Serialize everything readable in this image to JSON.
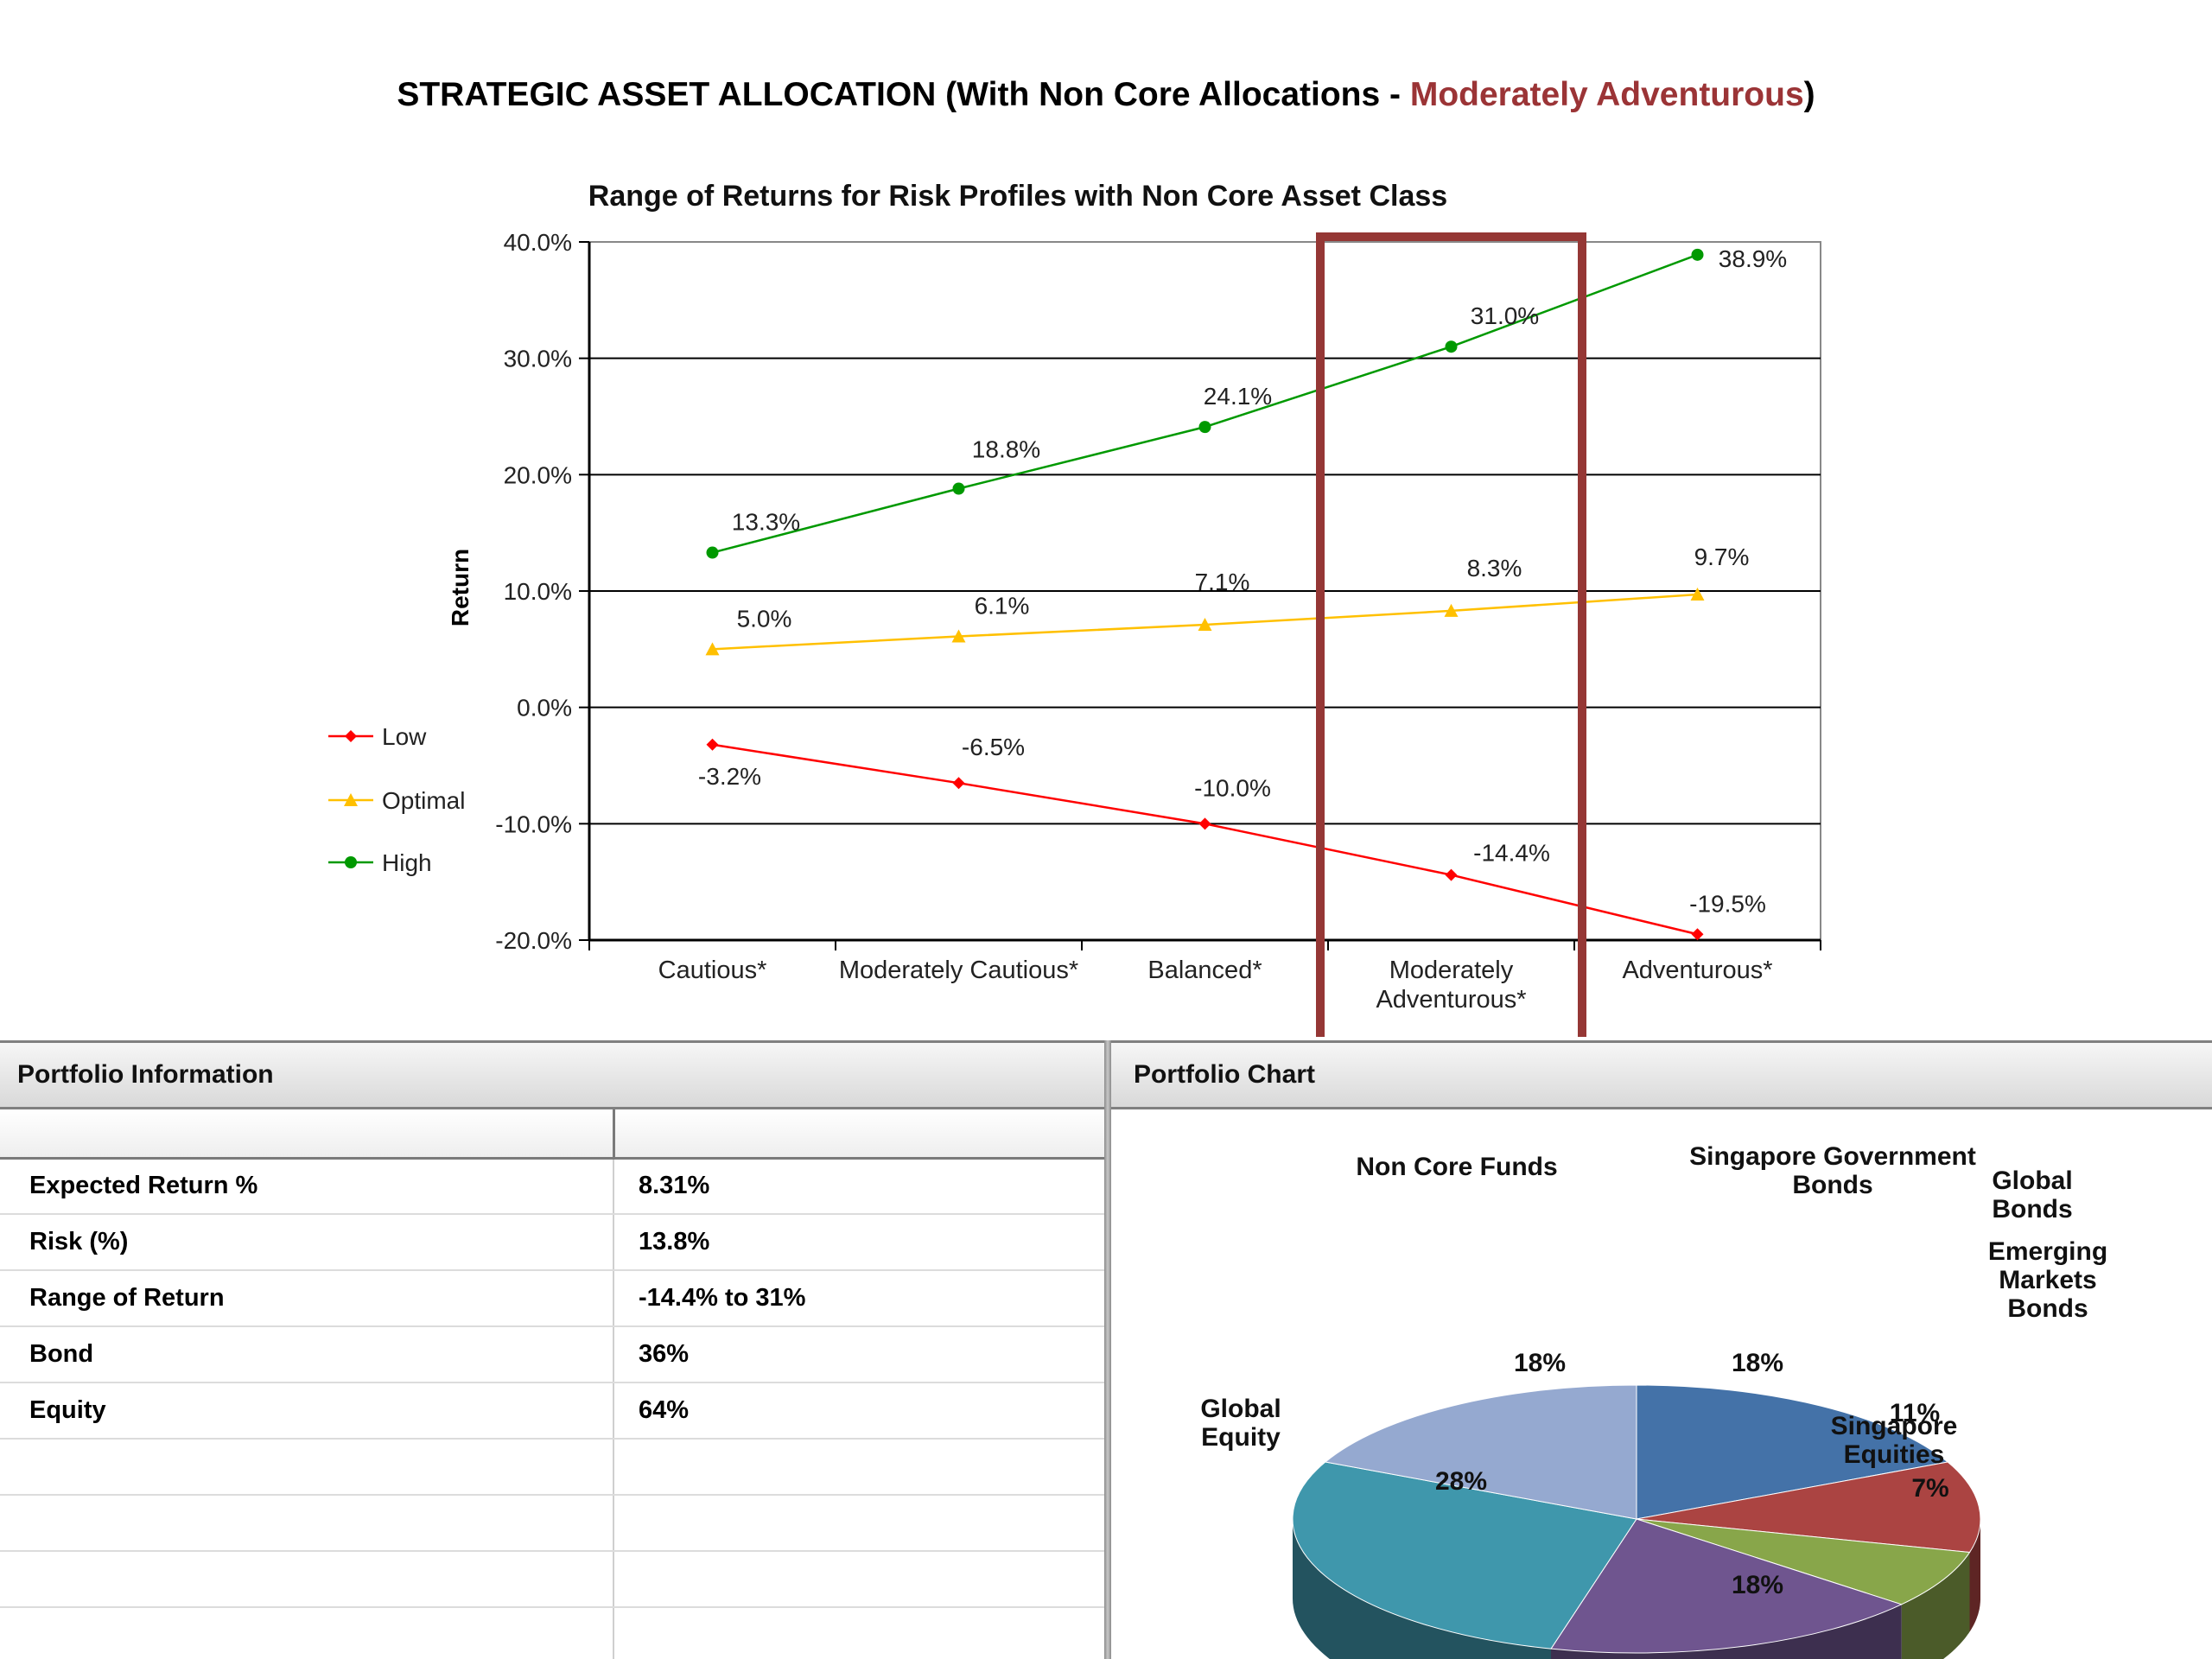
{
  "title": {
    "prefix": "STRATEGIC ASSET ALLOCATION (With Non Core Allocations - ",
    "highlight": "Moderately Adventurous",
    "suffix": ")",
    "highlight_color": "#9b3436"
  },
  "chart_data": [
    {
      "type": "line",
      "title": "Range of Returns for Risk Profiles with Non Core Asset Class",
      "xlabel": "",
      "ylabel": "Return",
      "categories": [
        "Cautious*",
        "Moderately Cautious*",
        "Balanced*",
        "Moderately Adventurous*",
        "Adventurous*"
      ],
      "category_lines": [
        [
          "Cautious*"
        ],
        [
          "Moderately Cautious*"
        ],
        [
          "Balanced*"
        ],
        [
          "Moderately",
          "Adventurous*"
        ],
        [
          "Adventurous*"
        ]
      ],
      "ylim": [
        -20,
        40
      ],
      "yticks": [
        -20,
        -10,
        0,
        10,
        20,
        30,
        40
      ],
      "ytick_labels": [
        "-20.0%",
        "-10.0%",
        "0.0%",
        "10.0%",
        "20.0%",
        "30.0%",
        "40.0%"
      ],
      "grid": true,
      "legend": "left",
      "highlighted_category": "Moderately Adventurous*",
      "highlight_color": "#953735",
      "series": [
        {
          "name": "Low",
          "color": "#ff0000",
          "marker": "diamond",
          "values": [
            -3.2,
            -6.5,
            -10.0,
            -14.4,
            -19.5
          ],
          "labels": [
            "-3.2%",
            "-6.5%",
            "-10.0%",
            "-14.4%",
            "-19.5%"
          ]
        },
        {
          "name": "Optimal",
          "color": "#ffc000",
          "marker": "triangle",
          "values": [
            5.0,
            6.1,
            7.1,
            8.3,
            9.7
          ],
          "labels": [
            "5.0%",
            "6.1%",
            "7.1%",
            "8.3%",
            "9.7%"
          ]
        },
        {
          "name": "High",
          "color": "#009900",
          "marker": "circle",
          "values": [
            13.3,
            18.8,
            24.1,
            31.0,
            38.9
          ],
          "labels": [
            "13.3%",
            "18.8%",
            "24.1%",
            "31.0%",
            "38.9%"
          ]
        }
      ]
    },
    {
      "type": "pie",
      "slices": [
        {
          "label": "Singapore Government Bonds",
          "label_lines": [
            "Singapore Government",
            "Bonds"
          ],
          "value": 18,
          "text": "18%",
          "color": "#4472a8"
        },
        {
          "label": "Global Bonds",
          "label_lines": [
            "Global",
            "Bonds"
          ],
          "value": 11,
          "text": "11%",
          "color": "#ab4442"
        },
        {
          "label": "Emerging Markets Bonds",
          "label_lines": [
            "Emerging",
            "Markets",
            "Bonds"
          ],
          "value": 7,
          "text": "7%",
          "color": "#88a64a"
        },
        {
          "label": "Singapore Equities",
          "label_lines": [
            "Singapore",
            "Equities"
          ],
          "value": 18,
          "text": "18%",
          "color": "#6f558f"
        },
        {
          "label": "Global Equity",
          "label_lines": [
            "Global",
            "Equity"
          ],
          "value": 28,
          "text": "28%",
          "color": "#3f97ac"
        },
        {
          "label": "Non Core Funds",
          "label_lines": [
            "Non Core Funds"
          ],
          "value": 18,
          "text": "18%",
          "color": "#95a9d0"
        }
      ]
    }
  ],
  "portfolio_info": {
    "header": "Portfolio Information",
    "rows": [
      {
        "label": "Expected Return %",
        "value": "8.31%"
      },
      {
        "label": "Risk (%)",
        "value": "13.8%"
      },
      {
        "label": "Range of Return",
        "value": "-14.4% to 31%"
      },
      {
        "label": "Bond",
        "value": "36%"
      },
      {
        "label": "Equity",
        "value": "64%"
      },
      {
        "label": "",
        "value": ""
      },
      {
        "label": "",
        "value": ""
      },
      {
        "label": "",
        "value": ""
      },
      {
        "label": "",
        "value": ""
      }
    ]
  },
  "portfolio_chart": {
    "header": "Portfolio Chart"
  }
}
